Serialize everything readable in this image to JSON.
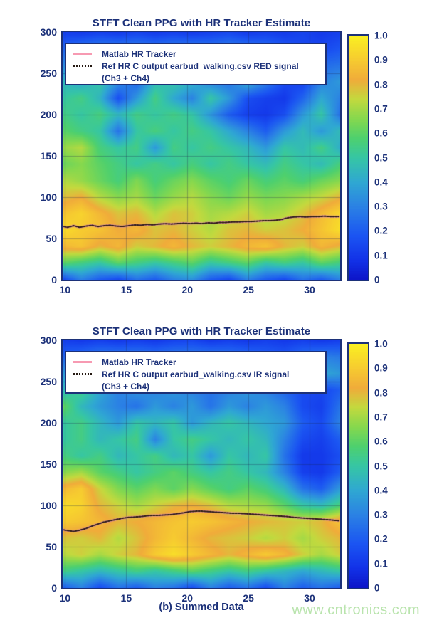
{
  "page": {
    "caption": "(b) Summed Data",
    "watermark": "www.cntronics.com"
  },
  "colors": {
    "navy_text": "#1c3179",
    "frame": "#1c3179",
    "pink_line": "#f79ab2",
    "ref_line": "#241811",
    "grid_line": "rgba(25,35,80,0.30)",
    "legend_bg": "#ffffff",
    "watermark_green": "#b9e4ad",
    "page_bg": "#ffffff"
  },
  "colormap_stops": [
    [
      0.0,
      "#0d16c9"
    ],
    [
      0.08,
      "#1232e8"
    ],
    [
      0.18,
      "#1b55f2"
    ],
    [
      0.3,
      "#2b82e4"
    ],
    [
      0.4,
      "#2fa8d2"
    ],
    [
      0.5,
      "#36c6a4"
    ],
    [
      0.58,
      "#4ed06e"
    ],
    [
      0.66,
      "#86d84e"
    ],
    [
      0.74,
      "#c3d93e"
    ],
    [
      0.82,
      "#f0ac3a"
    ],
    [
      0.9,
      "#f6cb30"
    ],
    [
      1.0,
      "#faf022"
    ]
  ],
  "figures": [
    {
      "title": "STFT Clean PPG with HR Tracker Estimate",
      "legend": [
        {
          "marker": "pink-solid-line",
          "label": "Matlab HR Tracker"
        },
        {
          "marker": "black-dotted-line",
          "label": "Ref HR C output earbud_walking.csv RED signal",
          "label2": "(Ch3 + Ch4)"
        }
      ]
    },
    {
      "title": "STFT Clean PPG with HR Tracker Estimate",
      "legend": [
        {
          "marker": "pink-solid-line",
          "label": "Matlab HR Tracker"
        },
        {
          "marker": "black-dotted-line",
          "label": "Ref HR C output earbud_walking.csv IR signal",
          "label2": "(Ch3 + Ch4)"
        }
      ]
    }
  ],
  "chart_data": [
    {
      "type": "heatmap",
      "title": "STFT Clean PPG with HR Tracker Estimate",
      "xlabel": "",
      "ylabel": "",
      "x_range": [
        9.8,
        32.5
      ],
      "y_range": [
        0,
        300
      ],
      "x_ticks": [
        10,
        15,
        20,
        25,
        30
      ],
      "y_ticks": [
        0,
        50,
        100,
        150,
        200,
        250,
        300
      ],
      "colorbar_ticks": [
        0,
        0.1,
        0.2,
        0.3,
        0.4,
        0.5,
        0.6,
        0.7,
        0.8,
        0.9,
        1.0
      ],
      "colorbar_range": [
        0,
        1
      ],
      "grid_on": true,
      "grid_rows_top_to_bottom_y": [
        300,
        280,
        260,
        240,
        220,
        200,
        180,
        160,
        140,
        120,
        100,
        80,
        60,
        40,
        20,
        0
      ],
      "grid_values": [
        [
          0.12,
          0.1,
          0.12,
          0.1,
          0.13,
          0.1,
          0.12,
          0.1,
          0.12,
          0.14,
          0.1,
          0.12,
          0.1,
          0.13,
          0.1,
          0.12
        ],
        [
          0.22,
          0.28,
          0.3,
          0.3,
          0.3,
          0.28,
          0.3,
          0.3,
          0.28,
          0.3,
          0.28,
          0.25,
          0.2,
          0.15,
          0.14,
          0.18
        ],
        [
          0.32,
          0.36,
          0.34,
          0.3,
          0.36,
          0.34,
          0.35,
          0.32,
          0.3,
          0.32,
          0.3,
          0.26,
          0.2,
          0.18,
          0.24,
          0.26
        ],
        [
          0.45,
          0.4,
          0.5,
          0.34,
          0.22,
          0.45,
          0.5,
          0.44,
          0.3,
          0.26,
          0.44,
          0.3,
          0.15,
          0.12,
          0.3,
          0.36
        ],
        [
          0.5,
          0.55,
          0.44,
          0.16,
          0.36,
          0.55,
          0.4,
          0.3,
          0.5,
          0.36,
          0.16,
          0.12,
          0.1,
          0.22,
          0.4,
          0.3
        ],
        [
          0.55,
          0.5,
          0.56,
          0.45,
          0.55,
          0.5,
          0.55,
          0.5,
          0.35,
          0.2,
          0.12,
          0.1,
          0.16,
          0.36,
          0.5,
          0.26
        ],
        [
          0.6,
          0.55,
          0.5,
          0.26,
          0.5,
          0.56,
          0.5,
          0.55,
          0.5,
          0.4,
          0.3,
          0.2,
          0.36,
          0.46,
          0.36,
          0.46
        ],
        [
          0.68,
          0.72,
          0.56,
          0.5,
          0.55,
          0.36,
          0.55,
          0.5,
          0.55,
          0.5,
          0.45,
          0.36,
          0.5,
          0.46,
          0.55,
          0.42
        ],
        [
          0.62,
          0.66,
          0.6,
          0.55,
          0.5,
          0.55,
          0.5,
          0.56,
          0.5,
          0.55,
          0.5,
          0.46,
          0.55,
          0.5,
          0.46,
          0.56
        ],
        [
          0.72,
          0.68,
          0.62,
          0.56,
          0.65,
          0.56,
          0.62,
          0.66,
          0.6,
          0.56,
          0.62,
          0.56,
          0.6,
          0.56,
          0.62,
          0.66
        ],
        [
          0.78,
          0.82,
          0.72,
          0.66,
          0.7,
          0.62,
          0.68,
          0.72,
          0.66,
          0.62,
          0.68,
          0.64,
          0.66,
          0.7,
          0.74,
          0.8
        ],
        [
          0.88,
          0.92,
          0.85,
          0.78,
          0.8,
          0.72,
          0.78,
          0.76,
          0.7,
          0.72,
          0.76,
          0.7,
          0.72,
          0.78,
          0.86,
          0.93
        ],
        [
          0.95,
          0.9,
          0.88,
          0.82,
          0.85,
          0.78,
          0.8,
          0.76,
          0.72,
          0.78,
          0.8,
          0.76,
          0.78,
          0.82,
          0.88,
          0.95
        ],
        [
          0.85,
          0.88,
          0.8,
          0.85,
          0.76,
          0.8,
          0.85,
          0.8,
          0.76,
          0.8,
          0.85,
          0.88,
          0.8,
          0.76,
          0.85,
          0.8
        ],
        [
          0.6,
          0.55,
          0.5,
          0.6,
          0.55,
          0.5,
          0.55,
          0.6,
          0.5,
          0.55,
          0.6,
          0.5,
          0.55,
          0.5,
          0.6,
          0.55
        ],
        [
          0.15,
          0.3,
          0.2,
          0.15,
          0.26,
          0.2,
          0.3,
          0.34,
          0.2,
          0.15,
          0.3,
          0.2,
          0.15,
          0.26,
          0.2,
          0.3
        ]
      ],
      "series": [
        {
          "name": "Matlab HR Tracker",
          "style": "pink-solid"
        },
        {
          "name": "Ref HR C output earbud_walking.csv RED signal (Ch3 + Ch4)",
          "style": "black-dotted"
        }
      ],
      "tracker_points": [
        [
          9.7,
          65
        ],
        [
          10.2,
          63.5
        ],
        [
          10.7,
          65.5
        ],
        [
          11.2,
          63.5
        ],
        [
          11.7,
          65
        ],
        [
          12.2,
          66
        ],
        [
          12.7,
          64.5
        ],
        [
          13.2,
          65.5
        ],
        [
          13.7,
          66
        ],
        [
          14.2,
          65
        ],
        [
          14.7,
          64.5
        ],
        [
          15.2,
          65.5
        ],
        [
          15.7,
          66.5
        ],
        [
          16.2,
          66
        ],
        [
          16.7,
          67
        ],
        [
          17.2,
          66.5
        ],
        [
          17.7,
          67.5
        ],
        [
          18.2,
          68
        ],
        [
          18.7,
          67.5
        ],
        [
          19.2,
          68
        ],
        [
          19.7,
          68.5
        ],
        [
          20.2,
          68
        ],
        [
          20.7,
          68.5
        ],
        [
          21.2,
          68
        ],
        [
          21.7,
          69
        ],
        [
          22.2,
          68.5
        ],
        [
          22.7,
          69.5
        ],
        [
          23.2,
          69.5
        ],
        [
          23.7,
          70
        ],
        [
          24.2,
          70
        ],
        [
          24.7,
          70.5
        ],
        [
          25.2,
          70.5
        ],
        [
          25.7,
          71
        ],
        [
          26.2,
          71.5
        ],
        [
          26.7,
          71.5
        ],
        [
          27.2,
          72
        ],
        [
          27.7,
          73
        ],
        [
          28.2,
          75
        ],
        [
          28.7,
          76
        ],
        [
          29.2,
          76.5
        ],
        [
          29.7,
          76
        ],
        [
          30.2,
          76.5
        ],
        [
          30.7,
          76.5
        ],
        [
          31.2,
          77
        ],
        [
          31.7,
          76.5
        ],
        [
          32.4,
          76.5
        ]
      ]
    },
    {
      "type": "heatmap",
      "title": "STFT Clean PPG with HR Tracker Estimate",
      "xlabel": "(b) Summed Data",
      "ylabel": "",
      "x_range": [
        9.8,
        32.5
      ],
      "y_range": [
        0,
        300
      ],
      "x_ticks": [
        10,
        15,
        20,
        25,
        30
      ],
      "y_ticks": [
        0,
        50,
        100,
        150,
        200,
        250,
        300
      ],
      "colorbar_ticks": [
        0,
        0.1,
        0.2,
        0.3,
        0.4,
        0.5,
        0.6,
        0.7,
        0.8,
        0.9,
        1.0
      ],
      "colorbar_range": [
        0,
        1
      ],
      "grid_on": true,
      "grid_rows_top_to_bottom_y": [
        300,
        280,
        260,
        240,
        220,
        200,
        180,
        160,
        140,
        120,
        100,
        80,
        60,
        40,
        20,
        0
      ],
      "grid_values": [
        [
          0.12,
          0.1,
          0.12,
          0.1,
          0.12,
          0.1,
          0.13,
          0.14,
          0.1,
          0.12,
          0.1,
          0.12,
          0.1,
          0.12,
          0.1,
          0.12
        ],
        [
          0.22,
          0.26,
          0.3,
          0.3,
          0.3,
          0.28,
          0.3,
          0.3,
          0.3,
          0.28,
          0.26,
          0.22,
          0.2,
          0.26,
          0.3,
          0.28
        ],
        [
          0.36,
          0.4,
          0.35,
          0.4,
          0.36,
          0.35,
          0.4,
          0.36,
          0.35,
          0.3,
          0.3,
          0.36,
          0.3,
          0.36,
          0.4,
          0.36
        ],
        [
          0.45,
          0.55,
          0.4,
          0.3,
          0.35,
          0.3,
          0.36,
          0.3,
          0.26,
          0.3,
          0.36,
          0.3,
          0.22,
          0.15,
          0.14,
          0.2
        ],
        [
          0.62,
          0.45,
          0.36,
          0.3,
          0.26,
          0.36,
          0.3,
          0.36,
          0.26,
          0.36,
          0.3,
          0.36,
          0.3,
          0.15,
          0.12,
          0.26
        ],
        [
          0.5,
          0.55,
          0.45,
          0.36,
          0.5,
          0.45,
          0.5,
          0.36,
          0.45,
          0.5,
          0.45,
          0.4,
          0.36,
          0.2,
          0.15,
          0.3
        ],
        [
          0.5,
          0.55,
          0.45,
          0.5,
          0.55,
          0.3,
          0.5,
          0.55,
          0.5,
          0.45,
          0.5,
          0.45,
          0.3,
          0.15,
          0.12,
          0.2
        ],
        [
          0.56,
          0.5,
          0.55,
          0.45,
          0.5,
          0.55,
          0.45,
          0.5,
          0.36,
          0.5,
          0.45,
          0.5,
          0.26,
          0.1,
          0.1,
          0.16
        ],
        [
          0.66,
          0.7,
          0.6,
          0.55,
          0.5,
          0.55,
          0.6,
          0.55,
          0.5,
          0.55,
          0.5,
          0.45,
          0.3,
          0.12,
          0.1,
          0.2
        ],
        [
          0.85,
          0.9,
          0.75,
          0.65,
          0.6,
          0.65,
          0.6,
          0.66,
          0.6,
          0.55,
          0.6,
          0.55,
          0.45,
          0.26,
          0.2,
          0.36
        ],
        [
          0.95,
          0.92,
          0.8,
          0.75,
          0.7,
          0.75,
          0.8,
          0.82,
          0.78,
          0.72,
          0.7,
          0.68,
          0.6,
          0.5,
          0.46,
          0.56
        ],
        [
          0.9,
          0.88,
          0.85,
          0.8,
          0.82,
          0.85,
          0.88,
          0.9,
          0.88,
          0.85,
          0.82,
          0.8,
          0.78,
          0.76,
          0.8,
          0.88
        ],
        [
          0.78,
          0.76,
          0.8,
          0.72,
          0.78,
          0.85,
          0.9,
          0.85,
          0.8,
          0.78,
          0.76,
          0.72,
          0.76,
          0.7,
          0.76,
          0.8
        ],
        [
          0.72,
          0.76,
          0.7,
          0.76,
          0.8,
          0.9,
          0.95,
          0.9,
          0.85,
          0.8,
          0.85,
          0.9,
          0.85,
          0.76,
          0.7,
          0.76
        ],
        [
          0.55,
          0.5,
          0.45,
          0.5,
          0.55,
          0.5,
          0.55,
          0.6,
          0.55,
          0.5,
          0.55,
          0.5,
          0.45,
          0.4,
          0.45,
          0.5
        ],
        [
          0.2,
          0.3,
          0.15,
          0.26,
          0.2,
          0.3,
          0.26,
          0.15,
          0.3,
          0.2,
          0.26,
          0.15,
          0.3,
          0.2,
          0.26,
          0.2
        ]
      ],
      "series": [
        {
          "name": "Matlab HR Tracker",
          "style": "pink-solid"
        },
        {
          "name": "Ref HR C output earbud_walking.csv IR signal (Ch3 + Ch4)",
          "style": "black-dotted"
        }
      ],
      "tracker_points": [
        [
          9.7,
          71
        ],
        [
          10.2,
          69.5
        ],
        [
          10.7,
          68.5
        ],
        [
          11.2,
          70
        ],
        [
          11.7,
          72
        ],
        [
          12.2,
          75
        ],
        [
          12.7,
          77.5
        ],
        [
          13.2,
          80
        ],
        [
          13.7,
          81.5
        ],
        [
          14.2,
          83
        ],
        [
          14.7,
          84.5
        ],
        [
          15.2,
          85.5
        ],
        [
          15.7,
          86
        ],
        [
          16.2,
          86.5
        ],
        [
          16.7,
          87.5
        ],
        [
          17.2,
          88
        ],
        [
          17.7,
          88
        ],
        [
          18.2,
          88.5
        ],
        [
          18.7,
          89
        ],
        [
          19.2,
          90
        ],
        [
          19.7,
          91
        ],
        [
          20.2,
          92.5
        ],
        [
          20.7,
          93
        ],
        [
          21.2,
          93
        ],
        [
          21.7,
          92.5
        ],
        [
          22.2,
          92
        ],
        [
          22.7,
          91.5
        ],
        [
          23.2,
          91
        ],
        [
          23.7,
          90.5
        ],
        [
          24.2,
          90.5
        ],
        [
          24.7,
          90
        ],
        [
          25.2,
          89.5
        ],
        [
          25.7,
          89
        ],
        [
          26.2,
          88.5
        ],
        [
          26.7,
          88
        ],
        [
          27.2,
          87.5
        ],
        [
          27.7,
          87
        ],
        [
          28.2,
          86.5
        ],
        [
          28.7,
          85.5
        ],
        [
          29.2,
          85
        ],
        [
          29.7,
          84.5
        ],
        [
          30.2,
          84
        ],
        [
          30.7,
          83.5
        ],
        [
          31.2,
          83
        ],
        [
          31.7,
          82.5
        ],
        [
          32.4,
          81.5
        ]
      ]
    }
  ]
}
